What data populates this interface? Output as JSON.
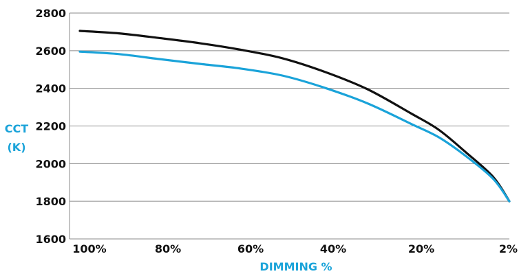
{
  "chart_data": {
    "type": "line",
    "xlabel": "DIMMING %",
    "ylabel": [
      "CCT",
      "(K)"
    ],
    "ylim": [
      1600,
      2800
    ],
    "yticks": [
      1600,
      1800,
      2000,
      2200,
      2400,
      2600,
      2800
    ],
    "xticks": [
      "100%",
      "80%",
      "60%",
      "40%",
      "20%",
      "2%"
    ],
    "grid": "horizontal",
    "colors": {
      "axis_title": "#1aa3d9",
      "series_black": "#111111",
      "series_blue": "#1aa3d9"
    },
    "series": [
      {
        "color": "#111111",
        "points": [
          [
            100,
            2705
          ],
          [
            90,
            2692
          ],
          [
            80,
            2668
          ],
          [
            70,
            2640
          ],
          [
            60,
            2605
          ],
          [
            50,
            2560
          ],
          [
            40,
            2490
          ],
          [
            30,
            2395
          ],
          [
            20,
            2265
          ],
          [
            15,
            2180
          ],
          [
            10,
            2060
          ],
          [
            5,
            1930
          ],
          [
            2,
            1800
          ]
        ]
      },
      {
        "color": "#1aa3d9",
        "points": [
          [
            100,
            2595
          ],
          [
            90,
            2582
          ],
          [
            80,
            2556
          ],
          [
            70,
            2530
          ],
          [
            60,
            2505
          ],
          [
            50,
            2468
          ],
          [
            40,
            2405
          ],
          [
            30,
            2320
          ],
          [
            20,
            2210
          ],
          [
            15,
            2140
          ],
          [
            10,
            2040
          ],
          [
            5,
            1920
          ],
          [
            2,
            1800
          ]
        ]
      }
    ]
  }
}
